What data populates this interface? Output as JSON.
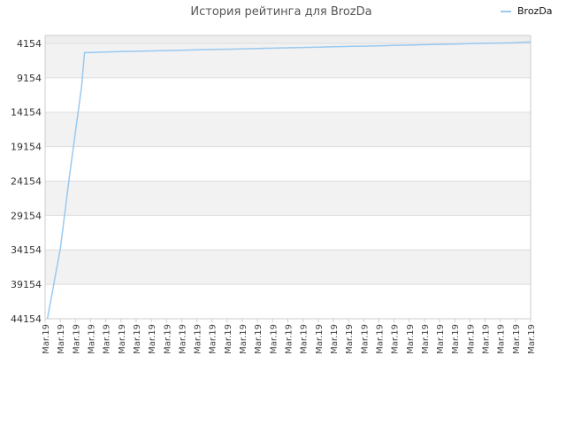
{
  "chart_data": {
    "type": "line",
    "title": "История рейтинга для BrozDa",
    "legend": {
      "position": "top-right"
    },
    "y_axis": {
      "reversed": true,
      "ylim": [
        3000,
        44154
      ],
      "ticks": [
        4154,
        9154,
        14154,
        19154,
        24154,
        29154,
        34154,
        39154,
        44154
      ],
      "tick_labels": [
        "4154",
        "9154",
        "14154",
        "19154",
        "24154",
        "29154",
        "34154",
        "39154",
        "44154"
      ]
    },
    "x_axis": {
      "tick_labels": [
        "Mar.19",
        "Mar.19",
        "Mar.19",
        "Mar.19",
        "Mar.19",
        "Mar.19",
        "Mar.19",
        "Mar.19",
        "Mar.19",
        "Mar.19",
        "Mar.19",
        "Mar.19",
        "Mar.19",
        "Mar.19",
        "Mar.19",
        "Mar.19",
        "Mar.19",
        "Mar.19",
        "Mar.19",
        "Mar.19",
        "Mar.19",
        "Mar.19",
        "Mar.19",
        "Mar.19",
        "Mar.19",
        "Mar.19",
        "Mar.19",
        "Mar.19",
        "Mar.19",
        "Mar.19",
        "Mar.19",
        "Mar.19",
        "Mar.19"
      ]
    },
    "grid": true,
    "colors": {
      "series": "#99c9f0",
      "band": "#f2f2f2",
      "grid": "#dddddd",
      "axis": "#cccccc"
    },
    "series": [
      {
        "name": "BrozDa",
        "points": [
          [
            0.15,
            44154
          ],
          [
            1.0,
            34000
          ],
          [
            1.6,
            23500
          ],
          [
            2.0,
            17000
          ],
          [
            2.4,
            10500
          ],
          [
            2.6,
            5500
          ],
          [
            3.0,
            5500
          ],
          [
            4.0,
            5400
          ],
          [
            5.0,
            5350
          ],
          [
            6.0,
            5300
          ],
          [
            7.0,
            5250
          ],
          [
            8.0,
            5200
          ],
          [
            9.0,
            5150
          ],
          [
            10.0,
            5100
          ],
          [
            11.0,
            5050
          ],
          [
            12.0,
            5000
          ],
          [
            13.0,
            4950
          ],
          [
            14.0,
            4900
          ],
          [
            15.0,
            4850
          ],
          [
            16.0,
            4800
          ],
          [
            17.0,
            4750
          ],
          [
            18.0,
            4700
          ],
          [
            19.0,
            4650
          ],
          [
            20.0,
            4600
          ],
          [
            21.0,
            4550
          ],
          [
            22.0,
            4500
          ],
          [
            23.0,
            4450
          ],
          [
            24.0,
            4400
          ],
          [
            25.0,
            4350
          ],
          [
            26.0,
            4300
          ],
          [
            27.0,
            4250
          ],
          [
            28.0,
            4200
          ],
          [
            29.0,
            4150
          ],
          [
            30.0,
            4100
          ],
          [
            31.0,
            4050
          ],
          [
            32.0,
            3950
          ]
        ]
      }
    ]
  }
}
